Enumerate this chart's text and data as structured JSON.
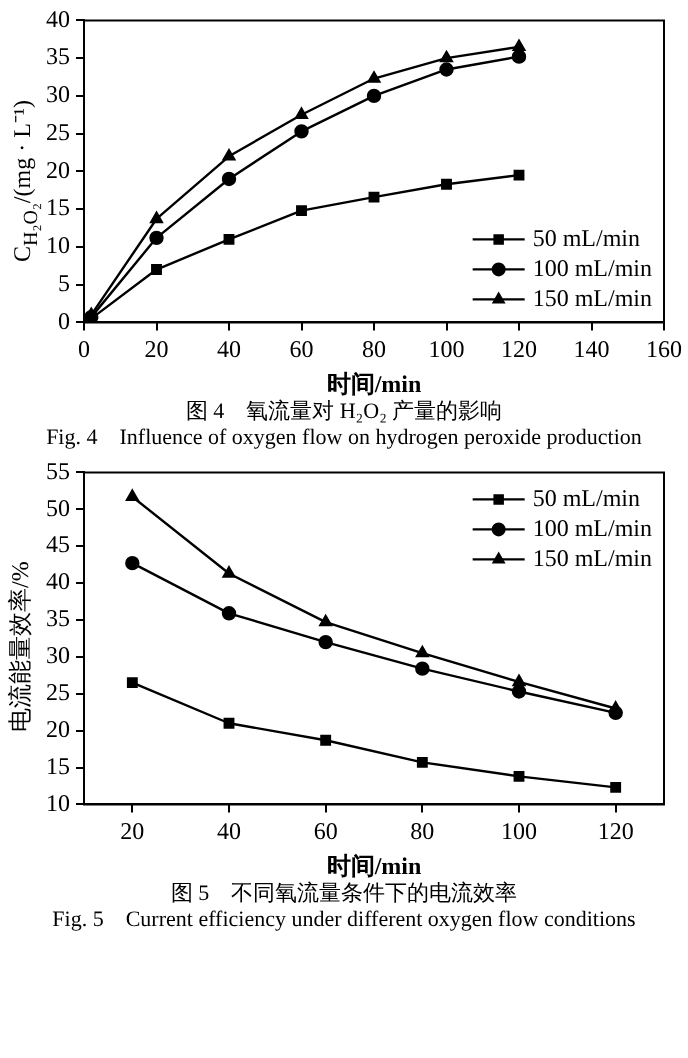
{
  "chart_data": [
    {
      "type": "line",
      "title": "图 4　氧流量对 H₂O₂ 产量的影响",
      "subtitle": "Fig. 4　Influence of oxygen flow on hydrogen peroxide production",
      "xlabel": "时间/min",
      "ylabel": "C$_{H₂O₂}$/(mg · L⁻¹)",
      "x": [
        2,
        20,
        40,
        60,
        80,
        100,
        120
      ],
      "xlim": [
        0,
        160
      ],
      "xticks": [
        0,
        20,
        40,
        60,
        80,
        100,
        120,
        140,
        160
      ],
      "ylim": [
        0,
        40
      ],
      "yticks": [
        0,
        5,
        10,
        15,
        20,
        25,
        30,
        35,
        40
      ],
      "grid": false,
      "legend": "bottom right",
      "line_style": "solid",
      "series": [
        {
          "name": "50 mL/min",
          "color": "#000000",
          "marker": "square",
          "values": [
            0.5,
            7,
            11,
            14.8,
            16.6,
            18.3,
            19.5
          ]
        },
        {
          "name": "100 mL/min",
          "color": "#000000",
          "marker": "circle",
          "values": [
            0.7,
            11.2,
            19,
            25.3,
            30,
            33.5,
            35.2
          ]
        },
        {
          "name": "150 mL/min",
          "color": "#000000",
          "marker": "triangle",
          "values": [
            1,
            13.7,
            22,
            27.5,
            32.3,
            35,
            36.5
          ]
        }
      ]
    },
    {
      "type": "line",
      "title": "图 5　不同氧流量条件下的电流效率",
      "subtitle": "Fig. 5　Current efficiency under different oxygen flow conditions",
      "xlabel": "时间/min",
      "ylabel": "电流能量效率/%",
      "x": [
        20,
        40,
        60,
        80,
        100,
        120
      ],
      "xlim": [
        10,
        130
      ],
      "xticks": [
        20,
        40,
        60,
        80,
        100,
        120
      ],
      "ylim": [
        10,
        55
      ],
      "yticks": [
        10,
        15,
        20,
        25,
        30,
        35,
        40,
        45,
        50,
        55
      ],
      "grid": false,
      "legend": "top right",
      "line_style": "solid",
      "series": [
        {
          "name": "50 mL/min",
          "color": "#000000",
          "marker": "square",
          "values": [
            26.5,
            21,
            18.7,
            15.7,
            13.8,
            12.3
          ]
        },
        {
          "name": "100 mL/min",
          "color": "#000000",
          "marker": "circle",
          "values": [
            42.7,
            35.9,
            32,
            28.4,
            25.3,
            22.4
          ]
        },
        {
          "name": "150 mL/min",
          "color": "#000000",
          "marker": "triangle",
          "values": [
            51.7,
            41.3,
            34.7,
            30.5,
            26.6,
            23
          ]
        }
      ]
    }
  ]
}
